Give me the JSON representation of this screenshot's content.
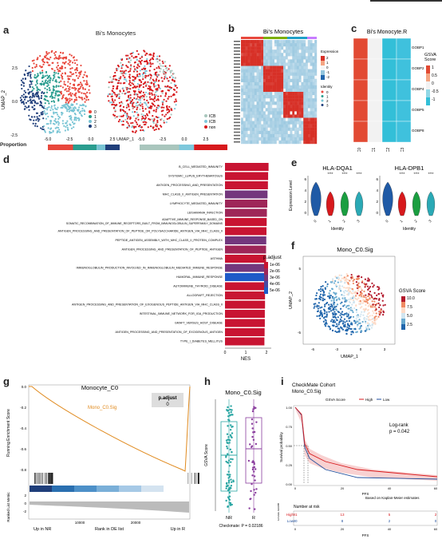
{
  "labels": {
    "a": "a",
    "b": "b",
    "c": "c",
    "d": "d",
    "e": "e",
    "f": "f",
    "g": "g",
    "h": "h",
    "i": "i"
  },
  "panel_a": {
    "title": "Bi's Monocytes",
    "ylabel": "UMAP_2",
    "xlabel": "UMAP_1",
    "row_label": "Proportion",
    "yticks": [
      "2.5",
      "0.0",
      "-2.5"
    ],
    "xticks_left": [
      "-5.0",
      "-2.5",
      "0.0",
      "2.5"
    ],
    "xticks_right": [
      "-5.0",
      "-2.5",
      "0.0",
      "2.5"
    ],
    "legend1": [
      "0",
      "1",
      "2",
      "3"
    ],
    "legend1_colors": [
      "#e8473c",
      "#2a9d8f",
      "#78c4d4",
      "#1f3e7a"
    ],
    "legend2": [
      "ICB-NR",
      "ICB-R",
      "nonICB"
    ],
    "legend2_colors": [
      "#a9c6bd",
      "#7ec8dc",
      "#d7191c"
    ],
    "prop1": [
      0.35,
      0.33,
      0.12,
      0.2
    ],
    "prop2": [
      0.45,
      0.17,
      0.38
    ]
  },
  "panel_b": {
    "title": "Bi's Monocytes",
    "legend_expr_title": "Expression",
    "expr_ticks": [
      "2",
      "1",
      "0",
      "-1",
      "-2"
    ],
    "legend_id_title": "Identity",
    "legend_id": [
      "0",
      "1",
      "2",
      "3"
    ],
    "top_bar": [
      "#e8473c",
      "#7cae00",
      "#1fa0c8",
      "#c77cff"
    ]
  },
  "panel_c": {
    "title": "Bi's Monocyte.R",
    "rows": [
      "GOBP1",
      "GOBP2",
      "GOBP4",
      "GOBP5",
      "GOBP8"
    ],
    "cols": [
      "C0",
      "C1",
      "C2",
      "C3"
    ],
    "legend_title": "GSVA Score",
    "legend_ticks": [
      "1",
      "0.5",
      "0",
      "-0.5",
      "-1"
    ]
  },
  "panel_d": {
    "terms": [
      "B_CELL_MEDIATED_IMMUNITY",
      "SYSTEMIC_LUPUS_ERYTHEMATOSUS",
      "ANTIGEN_PROCESSING_AND_PRESENTATION",
      "MHC_CLASS_II_ANTIGEN_PRESENTATION",
      "LYMPHOCYTE_MEDIATED_IMMUNITY",
      "LEISHMANIA_INFECTION",
      "ADAPTIVE_IMMUNE_RESPONSE_BASED_ON SOMATIC_RECOMBINATION_OF_IMMUNE_RECEPTORS_BUILT_FROM_IMMUNOGLOBULIN_SUPERFAMILY_DOMAINS",
      "ANTIGEN_PROCESSING_AND_PRESENTATION_OF_PEPTIDE_OR_POLYSACCHARIDE_ANTIGEN_VIA_MHC_CLASS_II",
      "PEPTIDE_ANTIGEN_ASSEMBLY_WITH_MHC_CLASS_II_PROTEIN_COMPLEX",
      "ANTIGEN_PROCESSING_AND_PRESENTATION_OF_PEPTIDE_ANTIGEN",
      "ASTHMA",
      "IMMUNOGLOBULIN_PRODUCTION_INVOLVED_IN_IMMUNOGLOBULIN_MEDIATED_IMMUNE_RESPONSE",
      "HUMORAL_IMMUNE_RESPONSE",
      "AUTOIMMUNE_THYROID_DISEASE",
      "ALLOGRAFT_REJECTION",
      "ANTIGEN_PROCESSING_AND_PRESENTATION_OF_EXOGENOUS_PEPTIDE_ANTIGEN_VIA_MHC_CLASS_II",
      "INTESTINAL_IMMUNE_NETWORK_FOR_IGA_PRODUCTION",
      "GRAFT_VERSUS_HOST_DISEASE",
      "ANTIGEN_PROCESSING_AND_PRESENTATION_OF_EXOGENOUS_ANTIGEN",
      "TYPE_I_DIABETES_MELLITUS"
    ],
    "nes": [
      2.1,
      2.08,
      2.07,
      2.05,
      2.04,
      2.02,
      2.01,
      2.0,
      1.99,
      1.98,
      1.98,
      1.96,
      1.94,
      1.94,
      1.93,
      1.93,
      1.92,
      1.92,
      1.91,
      1.9
    ],
    "padj": [
      1e-06,
      1e-06,
      1e-06,
      3e-06,
      2e-06,
      2e-06,
      1e-06,
      1e-06,
      3e-06,
      2e-06,
      1e-06,
      3e-06,
      5e-06,
      1e-06,
      1e-06,
      1e-06,
      1e-06,
      1e-06,
      1e-06,
      1e-06
    ],
    "xticks": [
      "0",
      "1",
      "2"
    ],
    "xlabel": "NES",
    "legend_title": "p.adjust",
    "legend_ticks": [
      "1e-06",
      "2e-06",
      "3e-06",
      "4e-06",
      "5e-06"
    ]
  },
  "panel_e": {
    "titles": [
      "HLA-DQA1",
      "HLA-DPB1"
    ],
    "ylabel": "Expression Level",
    "xlabel": "Identity",
    "cats": [
      "0",
      "1",
      "2",
      "3"
    ],
    "sig": "****",
    "yticks": [
      "6",
      "4",
      "2",
      "0"
    ],
    "colors": [
      "#1f5aa6",
      "#d7191c",
      "#1a9e40",
      "#2aa9b5"
    ]
  },
  "panel_f": {
    "title": "Mono_C0.Sig",
    "ylabel": "UMAP_2",
    "xlabel": "UMAP_1",
    "yticks": [
      "5",
      "0",
      "-5"
    ],
    "xticks": [
      "-6",
      "-3",
      "0",
      "3"
    ],
    "legend_title": "GSVA Score",
    "legend_ticks": [
      "10.0",
      "7.5",
      "5.0",
      "2.5"
    ]
  },
  "panel_g": {
    "title": "Monocyte_C0",
    "ylabel": "Running Enrichment Score",
    "ylabel2": "Ranked List Metric",
    "series": "Mono_C0.Sig",
    "badge_title": "p.adjust",
    "badge_value": "0",
    "yticks": [
      "0.0",
      "-0.2",
      "-0.4",
      "-0.6",
      "-0.8"
    ],
    "yticks2": [
      "2",
      "0",
      "-2"
    ],
    "xticks": [
      "10000",
      "20000"
    ],
    "x_left": "Up in NR",
    "x_mid": "Rank in DE list",
    "x_right": "Up in R"
  },
  "panel_h": {
    "title": "Mono_C0.Sig",
    "ylabel": "GSVA Score",
    "cats": [
      "NR",
      "R"
    ],
    "p_text": "Checkmate: P = 0.02186"
  },
  "panel_i": {
    "title": "CheckMate Cohort",
    "subtitle": "Mono_C0.Sig",
    "legend_title": "GSVA Score",
    "legend": [
      "High",
      "Low"
    ],
    "ylabel": "Survival probability",
    "xlabel": "PFS",
    "yticks": [
      "1.00",
      "0.75",
      "0.50",
      "0.25",
      "0.00"
    ],
    "xticks": [
      "0",
      "20",
      "40",
      "60"
    ],
    "logrank": "Log-rank",
    "p": "p = 0.042",
    "note": "Based on Kaplan-Meier estimates",
    "risk_title": "Number at risk",
    "risk_rows": [
      {
        "name": "High",
        "vals": [
          "91",
          "13",
          "5",
          "2"
        ]
      },
      {
        "name": "Low",
        "vals": [
          "90",
          "8",
          "2",
          "0"
        ]
      }
    ],
    "colors": {
      "High": "#d7191c",
      "Low": "#1f4e9c"
    }
  }
}
